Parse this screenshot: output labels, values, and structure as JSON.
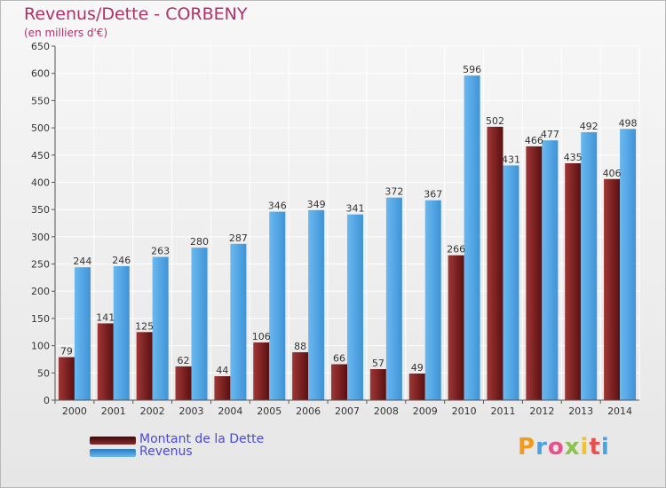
{
  "header": {
    "title": "Revenus/Dette - CORBENY",
    "subtitle": "(en milliers d'€)"
  },
  "legend": {
    "items": [
      {
        "label": "Montant de la Dette",
        "color": "#6b1a1a"
      },
      {
        "label": "Revenus",
        "color": "#4a9fe0"
      }
    ]
  },
  "logo": {
    "text": "Proxiti"
  },
  "colors": {
    "debt": "#7a2020",
    "revenue": "#4aa3e3",
    "title": "#b0306a",
    "legend_text": "#4a4ad8"
  },
  "chart_data": {
    "type": "bar",
    "title": "Revenus/Dette - CORBENY",
    "subtitle": "(en milliers d'€)",
    "categories": [
      "2000",
      "2001",
      "2002",
      "2003",
      "2004",
      "2005",
      "2006",
      "2007",
      "2008",
      "2009",
      "2010",
      "2011",
      "2012",
      "2013",
      "2014"
    ],
    "series": [
      {
        "name": "Montant de la Dette",
        "values": [
          79,
          141,
          125,
          62,
          44,
          106,
          88,
          66,
          57,
          49,
          266,
          502,
          466,
          435,
          406
        ]
      },
      {
        "name": "Revenus",
        "values": [
          244,
          246,
          263,
          280,
          287,
          346,
          349,
          341,
          372,
          367,
          596,
          431,
          477,
          492,
          498
        ]
      }
    ],
    "yticks": [
      0,
      50,
      100,
      150,
      200,
      250,
      300,
      350,
      400,
      450,
      500,
      550,
      600,
      650
    ],
    "ylim": [
      0,
      650
    ],
    "grid": true,
    "legend_position": "bottom-left"
  }
}
